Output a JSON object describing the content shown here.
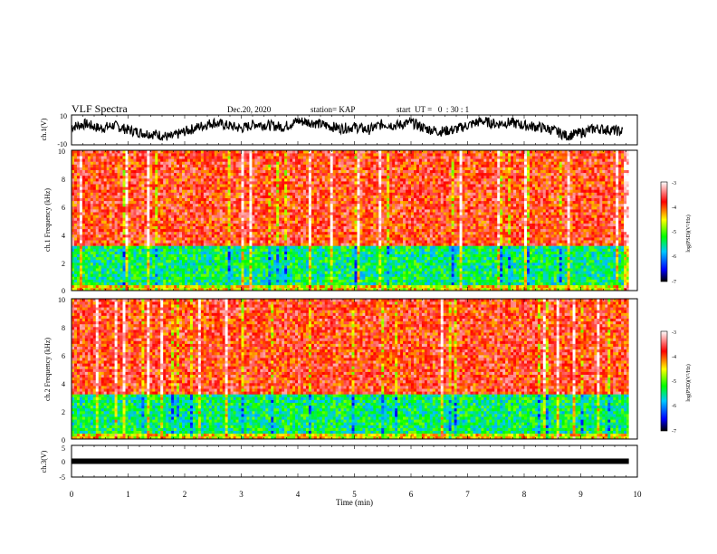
{
  "header": {
    "title": "VLF Spectra",
    "date": "Dec.20, 2020",
    "station": "station= KAP",
    "start_ut": "start  UT =   0  : 30 : 1"
  },
  "chart_data": [
    {
      "type": "line",
      "panel": "ch1-waveform",
      "ylabel": "ch.1(V)",
      "ylim": [
        -10,
        10
      ],
      "ytick_labels": [
        "10",
        "-10"
      ],
      "x": [
        0,
        0.25,
        0.5,
        0.75,
        1,
        1.25,
        1.5,
        1.75,
        2,
        2.25,
        2.5,
        2.75,
        3,
        3.25,
        3.5,
        3.75,
        4,
        4.25,
        4.5,
        4.75,
        5,
        5.25,
        5.5,
        5.75,
        6,
        6.25,
        6.5,
        6.75,
        7,
        7.25,
        7.5,
        7.75,
        8,
        8.25,
        8.5,
        8.75,
        9,
        9.25,
        9.5,
        9.75
      ],
      "y": [
        2,
        4,
        1,
        3,
        0,
        -2,
        -3,
        -5,
        -1,
        2,
        5,
        3,
        1,
        4,
        3,
        2,
        6,
        5,
        3,
        1,
        2,
        0,
        4,
        3,
        5,
        1,
        -1,
        0,
        3,
        6,
        4,
        5,
        3,
        2,
        0,
        -4,
        -2,
        1,
        0,
        -1
      ]
    },
    {
      "type": "heatmap",
      "panel": "ch1-spectrogram",
      "ylabel": "ch.1 Frequency (kHz)",
      "ylim": [
        0,
        10
      ],
      "ytick_labels": [
        "0",
        "2",
        "4",
        "6",
        "8",
        "10"
      ],
      "colorbar": {
        "label": "log(PSD)(V²/Hz)",
        "range": [
          -7,
          -3
        ],
        "tick_labels": [
          "-3",
          "-4",
          "-5",
          "-6",
          "-7"
        ]
      },
      "bands": [
        {
          "freq_range_khz": [
            0,
            0.5
          ],
          "log_psd": -4.5
        },
        {
          "freq_range_khz": [
            0.5,
            3.2
          ],
          "log_psd": -5.4
        },
        {
          "freq_range_khz": [
            3.2,
            10
          ],
          "log_psd": -3.8
        }
      ]
    },
    {
      "type": "heatmap",
      "panel": "ch2-spectrogram",
      "ylabel": "ch.2 Frequency (kHz)",
      "ylim": [
        0,
        10
      ],
      "ytick_labels": [
        "0",
        "2",
        "4",
        "6",
        "8",
        "10"
      ],
      "colorbar": {
        "label": "log(PSD)(V²/Hz)",
        "range": [
          -7,
          -3
        ],
        "tick_labels": [
          "-3",
          "-4",
          "-5",
          "-6",
          "-7"
        ]
      },
      "bands": [
        {
          "freq_range_khz": [
            0,
            0.5
          ],
          "log_psd": -4.5
        },
        {
          "freq_range_khz": [
            0.5,
            3.2
          ],
          "log_psd": -5.4
        },
        {
          "freq_range_khz": [
            3.2,
            10
          ],
          "log_psd": -3.8
        }
      ]
    },
    {
      "type": "line",
      "panel": "ch3-waveform",
      "ylabel": "ch.3(V)",
      "ylim": [
        -5,
        5
      ],
      "ytick_labels": [
        "5",
        "0",
        "-5"
      ],
      "x": [
        0,
        9.85
      ],
      "y": [
        0,
        0
      ]
    }
  ],
  "x_axis": {
    "label": "Time (min)",
    "range": [
      0,
      10
    ],
    "tick_labels": [
      "0",
      "1",
      "2",
      "3",
      "4",
      "5",
      "6",
      "7",
      "8",
      "9",
      "10"
    ]
  },
  "colors": {
    "colormap": [
      "#000000",
      "#0000ff",
      "#00c8ff",
      "#00ff00",
      "#ffff00",
      "#ff0000",
      "#ffffff"
    ],
    "dominant_high": "#ff2a2a",
    "dominant_mid": "#33ff33"
  }
}
